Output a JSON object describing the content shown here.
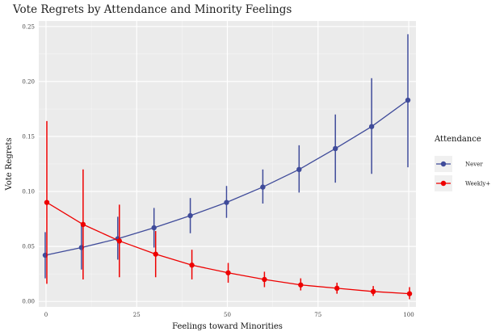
{
  "chart_data": {
    "type": "line",
    "title": "Vote Regrets by Attendance and Minority Feelings",
    "xlabel": "Feelings toward Minorities",
    "ylabel": "Vote Regrets",
    "xlim": [
      -2,
      102
    ],
    "ylim": [
      -0.005,
      0.255
    ],
    "xticks": [
      0,
      25,
      50,
      75,
      100
    ],
    "xtick_labels": [
      "0",
      "25",
      "50",
      "75",
      "100"
    ],
    "yticks": [
      0.0,
      0.05,
      0.1,
      0.15,
      0.2,
      0.25
    ],
    "ytick_labels": [
      "0.00",
      "0.05",
      "0.10",
      "0.15",
      "0.20",
      "0.25"
    ],
    "grid": true,
    "legend": {
      "title": "Attendance",
      "position": "right"
    },
    "series": [
      {
        "name": "Never",
        "color": "#3f4b9a",
        "points": [
          {
            "x": 0,
            "y": 0.042,
            "lo": 0.021,
            "hi": 0.063
          },
          {
            "x": 10,
            "y": 0.049,
            "lo": 0.029,
            "hi": 0.069
          },
          {
            "x": 20,
            "y": 0.057,
            "lo": 0.038,
            "hi": 0.077
          },
          {
            "x": 30,
            "y": 0.067,
            "lo": 0.049,
            "hi": 0.085
          },
          {
            "x": 40,
            "y": 0.078,
            "lo": 0.062,
            "hi": 0.094
          },
          {
            "x": 50,
            "y": 0.09,
            "lo": 0.076,
            "hi": 0.105
          },
          {
            "x": 60,
            "y": 0.104,
            "lo": 0.089,
            "hi": 0.12
          },
          {
            "x": 70,
            "y": 0.12,
            "lo": 0.099,
            "hi": 0.142
          },
          {
            "x": 80,
            "y": 0.139,
            "lo": 0.108,
            "hi": 0.17
          },
          {
            "x": 90,
            "y": 0.159,
            "lo": 0.116,
            "hi": 0.203
          },
          {
            "x": 100,
            "y": 0.183,
            "lo": 0.122,
            "hi": 0.243
          }
        ]
      },
      {
        "name": "Weekly+",
        "color": "#ee0000",
        "points": [
          {
            "x": 0,
            "y": 0.09,
            "lo": 0.016,
            "hi": 0.164
          },
          {
            "x": 10,
            "y": 0.07,
            "lo": 0.02,
            "hi": 0.12
          },
          {
            "x": 20,
            "y": 0.055,
            "lo": 0.022,
            "hi": 0.088
          },
          {
            "x": 30,
            "y": 0.043,
            "lo": 0.022,
            "hi": 0.064
          },
          {
            "x": 40,
            "y": 0.033,
            "lo": 0.02,
            "hi": 0.047
          },
          {
            "x": 50,
            "y": 0.026,
            "lo": 0.017,
            "hi": 0.035
          },
          {
            "x": 60,
            "y": 0.02,
            "lo": 0.013,
            "hi": 0.027
          },
          {
            "x": 70,
            "y": 0.015,
            "lo": 0.01,
            "hi": 0.021
          },
          {
            "x": 80,
            "y": 0.012,
            "lo": 0.007,
            "hi": 0.017
          },
          {
            "x": 90,
            "y": 0.009,
            "lo": 0.005,
            "hi": 0.014
          },
          {
            "x": 100,
            "y": 0.007,
            "lo": 0.002,
            "hi": 0.013
          }
        ]
      }
    ]
  }
}
